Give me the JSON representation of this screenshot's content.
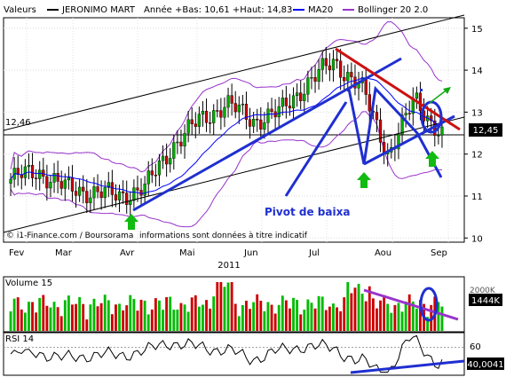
{
  "header": {
    "valeurs_label": "Valeurs",
    "stock_name": "JERONIMO MART",
    "range_label": "Année +Bas: 10,61 +Haut: 14,83",
    "ma_label": "MA20",
    "bollinger_label": "Bollinger 20 2.0",
    "colors": {
      "ma": "#0000ff",
      "bollinger": "#9933cc"
    }
  },
  "price_panel": {
    "ref_price_left": "12,46",
    "last_price_badge": "12,45",
    "watermark": "© i1-Finance.com / Boursorama",
    "disclaimer": "informations sont données à titre indicatif",
    "annotation": "Pivot de baixa"
  },
  "volume_panel": {
    "title": "Volume 15",
    "badge": "1444K",
    "scale_label": "2000K"
  },
  "rsi_panel": {
    "title": "RSI 14",
    "badge": "40,0041",
    "level_label": "60"
  },
  "x_axis": {
    "months": [
      "Fev",
      "Mar",
      "Avr",
      "Mai",
      "Jun",
      "Jul",
      "Aou",
      "Sep"
    ],
    "year": "2011"
  },
  "chart_data": [
    {
      "type": "candlestick",
      "title": "JERONIMO MART",
      "y_ticks": [
        10,
        11,
        12,
        13,
        14,
        15
      ],
      "ylim": [
        9.9,
        15.25
      ],
      "x_categories": [
        "Fev",
        "Mar",
        "Avr",
        "Mai",
        "Jun",
        "Jul",
        "Aou",
        "Sep"
      ],
      "close_series": [
        {
          "month": "Fev",
          "close": 11.4
        },
        {
          "month": "Fev-mid",
          "close": 11.6
        },
        {
          "month": "Mar",
          "close": 11.2
        },
        {
          "month": "Mar-mid",
          "close": 11.1
        },
        {
          "month": "Avr",
          "close": 11.0
        },
        {
          "month": "Avr-mid",
          "close": 11.2
        },
        {
          "month": "Avr-end",
          "close": 12.2
        },
        {
          "month": "Mai",
          "close": 12.8
        },
        {
          "month": "Mai-mid",
          "close": 13.2
        },
        {
          "month": "Jun",
          "close": 12.8
        },
        {
          "month": "Jun-mid",
          "close": 13.0
        },
        {
          "month": "Jul",
          "close": 13.7
        },
        {
          "month": "Jul-mid",
          "close": 14.2
        },
        {
          "month": "Jul-end",
          "close": 13.6
        },
        {
          "month": "Aou",
          "close": 12.0
        },
        {
          "month": "Aou-mid",
          "close": 13.3
        },
        {
          "month": "Sep",
          "close": 12.45
        }
      ],
      "reference_level": 12.46,
      "last_close": 12.45,
      "low": 10.61,
      "high": 14.83,
      "indicators": [
        "MA20",
        "Bollinger 20 2.0"
      ]
    },
    {
      "type": "bar",
      "title": "Volume 15",
      "scale_marker": "2000K",
      "last_value": "1444K"
    },
    {
      "type": "line",
      "title": "RSI 14",
      "level": 60,
      "last_value": 40.0041
    }
  ]
}
